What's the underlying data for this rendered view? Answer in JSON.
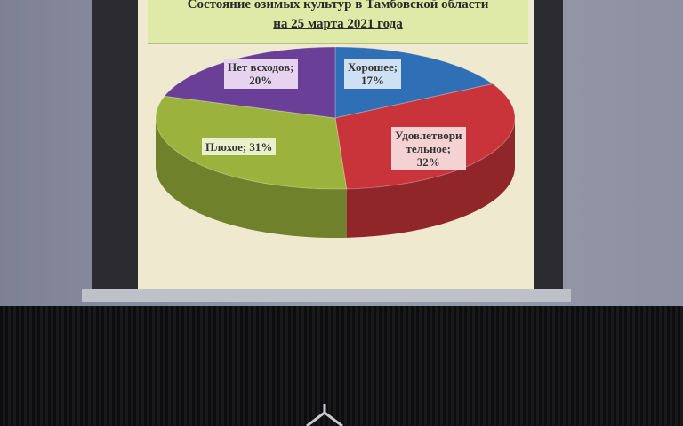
{
  "chart_data": {
    "type": "pie",
    "title": "Состояние озимых культур в Тамбовской области",
    "subtitle": "на 25 марта 2021 года",
    "slices": [
      {
        "label": "Хорошее; 17%",
        "label_lines": [
          "Хорошее;",
          "17%"
        ],
        "category": "Хорошее",
        "value": 17,
        "color": "#2f6fb5"
      },
      {
        "label": "Удовлетворительное; 32%",
        "label_lines": [
          "Удовлетвори",
          "тельное;",
          "32%"
        ],
        "category": "Удовлетворительное",
        "value": 32,
        "color": "#c8343a"
      },
      {
        "label": "Плохое; 31%",
        "label_lines": [
          "Плохое; 31%"
        ],
        "category": "Плохое",
        "value": 31,
        "color": "#9bb33c"
      },
      {
        "label": "Нет всходов; 20%",
        "label_lines": [
          "Нет всходов;",
          "20%"
        ],
        "category": "Нет всходов",
        "value": 20,
        "color": "#6a3f97"
      }
    ],
    "style": "3d"
  }
}
